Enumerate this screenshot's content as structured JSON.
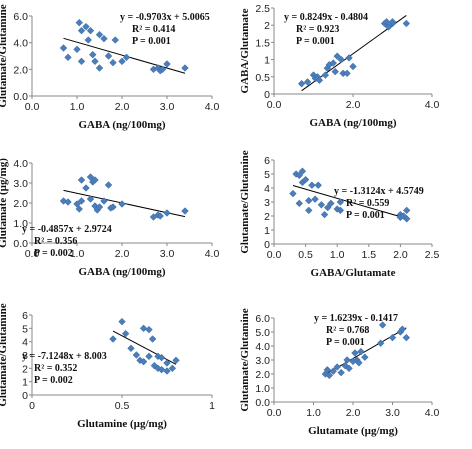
{
  "chart_data": [
    {
      "type": "scatter",
      "xlabel": "GABA (ng/100mg)",
      "ylabel": "Glutamate/Glutamine",
      "xlim": [
        0,
        4
      ],
      "ylim": [
        0,
        6
      ],
      "xticks": [
        "0.0",
        "1.0",
        "2.0",
        "3.0",
        "4.0"
      ],
      "yticks": [
        "0.0",
        "2.0",
        "4.0",
        "6.0"
      ],
      "annotations": [
        "y = -0.9703x + 5.0065",
        "R² = 0.414",
        "P  = 0.001"
      ],
      "trendline": {
        "slope": -0.9703,
        "intercept": 5.0065
      },
      "points": [
        [
          0.7,
          3.6
        ],
        [
          0.8,
          2.9
        ],
        [
          1.0,
          3.5
        ],
        [
          1.05,
          5.5
        ],
        [
          1.1,
          4.9
        ],
        [
          1.1,
          2.6
        ],
        [
          1.2,
          5.2
        ],
        [
          1.25,
          4.2
        ],
        [
          1.3,
          4.9
        ],
        [
          1.35,
          3.1
        ],
        [
          1.4,
          2.6
        ],
        [
          1.5,
          4.6
        ],
        [
          1.5,
          2.1
        ],
        [
          1.6,
          4.3
        ],
        [
          1.7,
          3.0
        ],
        [
          1.8,
          2.5
        ],
        [
          1.85,
          4.2
        ],
        [
          2.0,
          2.6
        ],
        [
          2.1,
          2.9
        ],
        [
          2.7,
          2.0
        ],
        [
          2.8,
          2.1
        ],
        [
          2.85,
          1.9
        ],
        [
          2.9,
          2.0
        ],
        [
          3.0,
          2.4
        ],
        [
          3.4,
          2.1
        ]
      ]
    },
    {
      "type": "scatter",
      "xlabel": "GABA (ng/100mg)",
      "ylabel": "GABA/Glutamate",
      "xlim": [
        0,
        4
      ],
      "ylim": [
        0,
        2.5
      ],
      "xticks": [
        "0.0",
        "2.0",
        "4.0"
      ],
      "yticks": [
        "0",
        "0.5",
        "1",
        "1.5",
        "2",
        "2.5"
      ],
      "annotations": [
        "y = 0.8249x - 0.4804",
        "R² = 0.923",
        "P  = 0.001"
      ],
      "trendline": {
        "slope": 0.8249,
        "intercept": -0.4804
      },
      "points": [
        [
          0.7,
          0.3
        ],
        [
          0.85,
          0.35
        ],
        [
          1.0,
          0.55
        ],
        [
          1.05,
          0.45
        ],
        [
          1.1,
          0.5
        ],
        [
          1.15,
          0.4
        ],
        [
          1.3,
          0.55
        ],
        [
          1.35,
          0.75
        ],
        [
          1.4,
          0.85
        ],
        [
          1.5,
          0.9
        ],
        [
          1.55,
          0.65
        ],
        [
          1.6,
          1.1
        ],
        [
          1.7,
          1.0
        ],
        [
          1.75,
          0.6
        ],
        [
          1.85,
          0.6
        ],
        [
          1.9,
          1.05
        ],
        [
          2.0,
          0.8
        ],
        [
          2.8,
          2.05
        ],
        [
          2.85,
          2.1
        ],
        [
          2.9,
          1.95
        ],
        [
          3.0,
          2.05
        ],
        [
          3.0,
          2.1
        ],
        [
          3.35,
          2.05
        ]
      ]
    },
    {
      "type": "scatter",
      "xlabel": "GABA (ng/100mg)",
      "ylabel": "Glutamate (µg/mg)",
      "xlim": [
        0,
        4
      ],
      "ylim": [
        0,
        4
      ],
      "xticks": [
        "0.0",
        "1.0",
        "2.0",
        "3.0",
        "4.0"
      ],
      "yticks": [
        "0.0",
        "1.0",
        "2.0",
        "3.0",
        "4.0"
      ],
      "annotations": [
        "y = -0.4857x + 2.9724",
        "R² = 0.356",
        "P  = 0.002"
      ],
      "trendline": {
        "slope": -0.4857,
        "intercept": 2.9724
      },
      "points": [
        [
          0.7,
          2.1
        ],
        [
          0.8,
          2.05
        ],
        [
          1.0,
          1.95
        ],
        [
          1.05,
          1.7
        ],
        [
          1.1,
          2.1
        ],
        [
          1.1,
          3.15
        ],
        [
          1.2,
          2.75
        ],
        [
          1.3,
          2.2
        ],
        [
          1.3,
          3.3
        ],
        [
          1.35,
          3.05
        ],
        [
          1.4,
          1.85
        ],
        [
          1.4,
          3.15
        ],
        [
          1.45,
          1.65
        ],
        [
          1.5,
          1.8
        ],
        [
          1.6,
          2.1
        ],
        [
          1.7,
          2.9
        ],
        [
          1.75,
          1.75
        ],
        [
          1.8,
          1.8
        ],
        [
          2.0,
          1.95
        ],
        [
          2.7,
          1.3
        ],
        [
          2.8,
          1.4
        ],
        [
          2.85,
          1.35
        ],
        [
          3.0,
          1.5
        ],
        [
          3.4,
          1.6
        ]
      ]
    },
    {
      "type": "scatter",
      "xlabel": "GABA/Glutamate",
      "ylabel": "Glutamate/Glutamine",
      "xlim": [
        0,
        2.5
      ],
      "ylim": [
        0,
        6
      ],
      "xticks": [
        "0.0",
        "0.5",
        "1.0",
        "1.5",
        "2.0",
        "2.5"
      ],
      "yticks": [
        "0",
        "1",
        "2",
        "3",
        "4",
        "5",
        "6"
      ],
      "annotations": [
        "y = -1.3124x + 4.5749",
        "R² = 0.559",
        "P  = 0.001"
      ],
      "trendline": {
        "slope": -1.3124,
        "intercept": 4.5749
      },
      "points": [
        [
          0.3,
          3.6
        ],
        [
          0.35,
          5.0
        ],
        [
          0.4,
          4.9
        ],
        [
          0.4,
          2.9
        ],
        [
          0.45,
          5.2
        ],
        [
          0.45,
          4.4
        ],
        [
          0.5,
          4.6
        ],
        [
          0.55,
          3.1
        ],
        [
          0.55,
          2.4
        ],
        [
          0.6,
          4.2
        ],
        [
          0.65,
          3.2
        ],
        [
          0.7,
          4.2
        ],
        [
          0.75,
          2.8
        ],
        [
          0.8,
          2.1
        ],
        [
          0.85,
          2.6
        ],
        [
          0.9,
          2.9
        ],
        [
          1.0,
          2.5
        ],
        [
          1.05,
          3.0
        ],
        [
          1.05,
          2.4
        ],
        [
          2.0,
          2.1
        ],
        [
          2.0,
          1.9
        ],
        [
          2.05,
          2.0
        ],
        [
          2.1,
          2.4
        ],
        [
          2.1,
          1.8
        ]
      ]
    },
    {
      "type": "scatter",
      "xlabel": "Glutamine (µg/mg)",
      "ylabel": "Glutamate/Glutamine",
      "xlim": [
        0,
        1
      ],
      "ylim": [
        0,
        6
      ],
      "xticks": [
        "0",
        "0.5",
        "1"
      ],
      "yticks": [
        "0",
        "1",
        "2",
        "3",
        "4",
        "5",
        "6"
      ],
      "annotations": [
        "y = -7.1248x + 8.003",
        "R² = 0.352",
        "P  = 0.002"
      ],
      "trendline": {
        "slope": -7.1248,
        "intercept": 8.003
      },
      "points": [
        [
          0.45,
          4.2
        ],
        [
          0.5,
          5.5
        ],
        [
          0.52,
          4.6
        ],
        [
          0.55,
          3.5
        ],
        [
          0.58,
          3.0
        ],
        [
          0.6,
          2.6
        ],
        [
          0.62,
          2.5
        ],
        [
          0.62,
          5.0
        ],
        [
          0.65,
          4.9
        ],
        [
          0.65,
          2.9
        ],
        [
          0.67,
          4.2
        ],
        [
          0.68,
          2.2
        ],
        [
          0.7,
          2.9
        ],
        [
          0.7,
          2.0
        ],
        [
          0.72,
          2.8
        ],
        [
          0.72,
          1.9
        ],
        [
          0.75,
          2.4
        ],
        [
          0.75,
          1.8
        ],
        [
          0.78,
          2.0
        ],
        [
          0.8,
          2.6
        ]
      ]
    },
    {
      "type": "scatter",
      "xlabel": "Glutamate (µg/mg)",
      "ylabel": "Glutamate/Glutamine",
      "xlim": [
        0,
        4
      ],
      "ylim": [
        0,
        6
      ],
      "xticks": [
        "0.0",
        "1.0",
        "2.0",
        "3.0",
        "4.0"
      ],
      "yticks": [
        "0.0",
        "1.0",
        "2.0",
        "3.0",
        "4.0",
        "5.0",
        "6.0"
      ],
      "annotations": [
        "y = 1.6239x - 0.1417",
        "R² = 0.768",
        "P  = 0.001"
      ],
      "trendline": {
        "slope": 1.6239,
        "intercept": -0.1417
      },
      "points": [
        [
          1.3,
          2.0
        ],
        [
          1.35,
          2.3
        ],
        [
          1.4,
          1.9
        ],
        [
          1.5,
          2.2
        ],
        [
          1.6,
          2.5
        ],
        [
          1.7,
          2.1
        ],
        [
          1.8,
          2.6
        ],
        [
          1.85,
          3.0
        ],
        [
          1.9,
          2.4
        ],
        [
          2.0,
          2.9
        ],
        [
          2.05,
          3.5
        ],
        [
          2.1,
          3.0
        ],
        [
          2.15,
          2.8
        ],
        [
          2.2,
          3.6
        ],
        [
          2.3,
          3.2
        ],
        [
          2.7,
          4.2
        ],
        [
          2.75,
          5.5
        ],
        [
          3.0,
          4.6
        ],
        [
          3.2,
          5.0
        ],
        [
          3.25,
          5.2
        ],
        [
          3.35,
          4.6
        ]
      ]
    }
  ]
}
